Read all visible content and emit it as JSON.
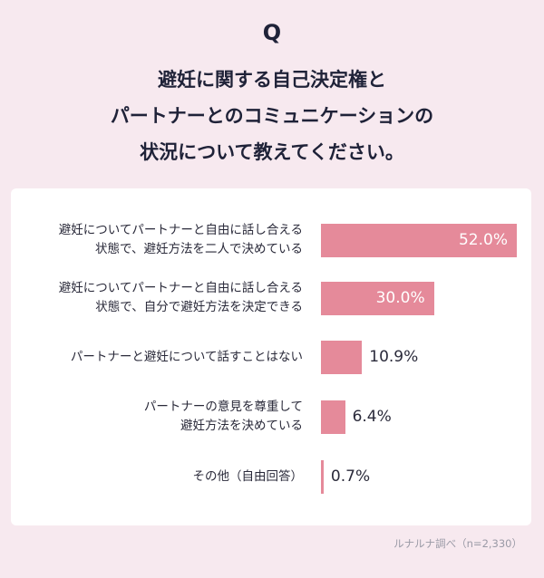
{
  "question_mark": "Q",
  "title_lines": [
    "避妊に関する自己決定権と",
    "パートナーとのコミュニケーションの",
    "状況について教えてください。"
  ],
  "source": "ルナルナ調べ（n=2,330）",
  "colors": {
    "background": "#f7e9ef",
    "bar": "#e58a9a",
    "card": "#ffffff"
  },
  "chart_data": {
    "type": "bar",
    "orientation": "horizontal",
    "categories": [
      [
        "避妊についてパートナーと自由に話し合える",
        "状態で、避妊方法を二人で決めている"
      ],
      [
        "避妊についてパートナーと自由に話し合える",
        "状態で、自分で避妊方法を決定できる"
      ],
      [
        "パートナーと避妊について話すことはない"
      ],
      [
        "パートナーの意見を尊重して",
        "避妊方法を決めている"
      ],
      [
        "その他（自由回答）"
      ]
    ],
    "values": [
      52.0,
      30.0,
      10.9,
      6.4,
      0.7
    ],
    "value_labels": [
      "52.0%",
      "30.0%",
      "10.9%",
      "6.4%",
      "0.7%"
    ],
    "xlim": [
      0,
      52.0
    ]
  }
}
